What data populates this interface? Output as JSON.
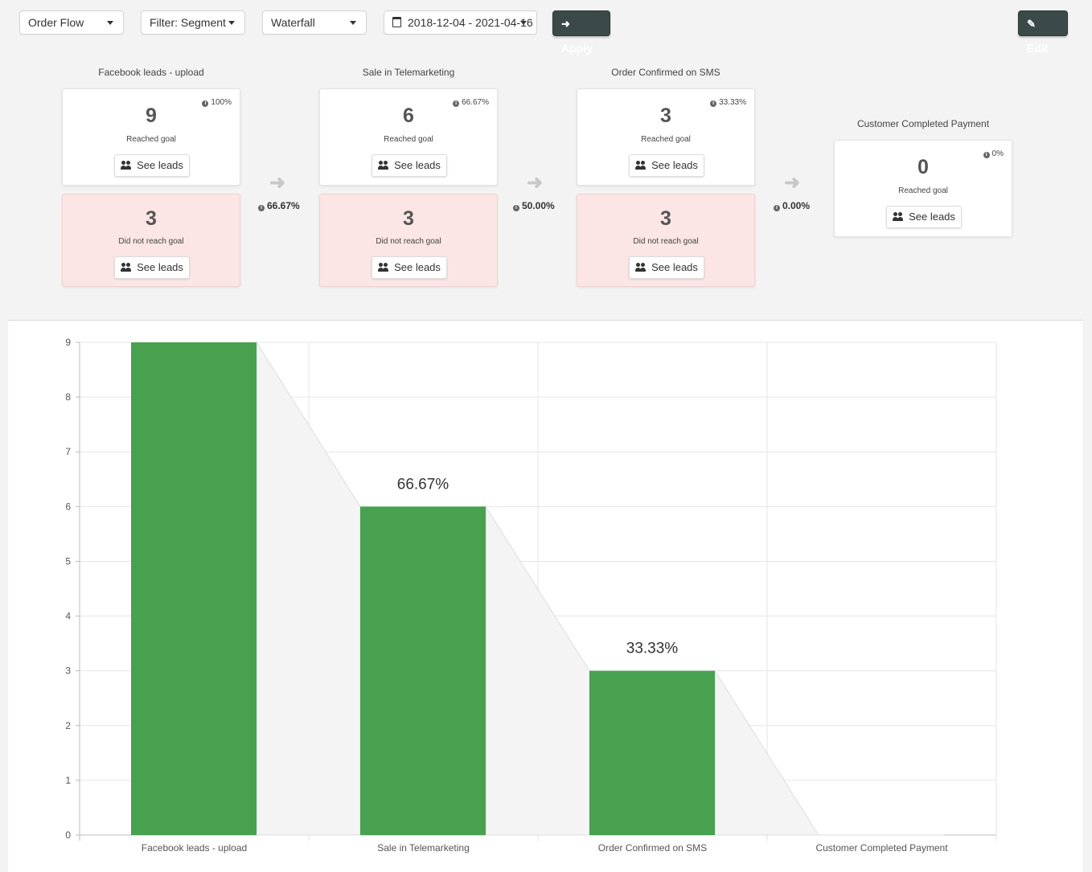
{
  "toolbar": {
    "flow": "Order Flow",
    "filter": "Filter: Segment",
    "view": "Waterfall",
    "date_range": "2018-12-04 - 2021-04-16",
    "apply_label": "Apply",
    "edit_label": "Edit"
  },
  "steps": [
    {
      "title": "Facebook leads - upload",
      "reached": "9",
      "reached_pct": "100%",
      "reached_label": "Reached goal",
      "not_reached": "3",
      "not_reached_label": "Did not reach goal",
      "see_leads": "See leads",
      "see_leads_fail": "See leads"
    },
    {
      "title": "Sale in Telemarketing",
      "reached": "6",
      "reached_pct": "66.67%",
      "reached_label": "Reached goal",
      "not_reached": "3",
      "not_reached_label": "Did not reach goal",
      "see_leads": "See leads",
      "see_leads_fail": "See leads"
    },
    {
      "title": "Order Confirmed on SMS",
      "reached": "3",
      "reached_pct": "33.33%",
      "reached_label": "Reached goal",
      "not_reached": "3",
      "not_reached_label": "Did not reach goal",
      "see_leads": "See leads",
      "see_leads_fail": "See leads"
    },
    {
      "title": "Customer Completed Payment",
      "reached": "0",
      "reached_pct": "0%",
      "reached_label": "Reached goal",
      "see_leads": "See leads"
    }
  ],
  "conversions": [
    "66.67%",
    "50.00%",
    "0.00%"
  ],
  "colors": {
    "bar": "#48a14f",
    "drop": "#f4f4f4",
    "dark_button": "#3b4a49",
    "fail_card": "#fbe5e5"
  },
  "chart_data": {
    "type": "bar",
    "categories": [
      "Facebook leads - upload",
      "Sale in Telemarketing",
      "Order Confirmed on SMS",
      "Customer Completed Payment"
    ],
    "values": [
      9,
      6,
      3,
      0
    ],
    "data_labels": [
      "",
      "66.67%",
      "33.33%",
      ""
    ],
    "ylim": [
      0,
      9
    ],
    "yticks": [
      0,
      1,
      2,
      3,
      4,
      5,
      6,
      7,
      8,
      9
    ],
    "grid": true
  }
}
